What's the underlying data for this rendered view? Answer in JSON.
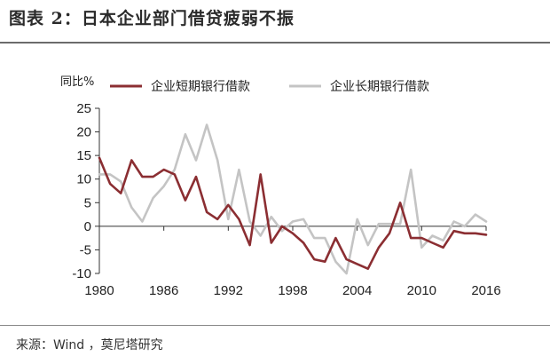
{
  "title": "图表 2：日本企业部门借贷疲弱不振",
  "source": "来源：Wind ，莫尼塔研究",
  "colors": {
    "short_term": "#8b2e32",
    "long_term": "#c4c4c4"
  },
  "chart_data": {
    "type": "line",
    "title": "",
    "xlabel": "",
    "ylabel": "同比%",
    "ylim": [
      -10,
      25
    ],
    "yticks": [
      25,
      20,
      15,
      10,
      5,
      0,
      -5,
      -10
    ],
    "xlim": [
      1980,
      2016
    ],
    "xticks": [
      "1980",
      "1986",
      "1992",
      "1998",
      "2004",
      "2010",
      "2016"
    ],
    "grid": false,
    "legend_position": "top",
    "x": [
      1980,
      1981,
      1982,
      1983,
      1984,
      1985,
      1986,
      1987,
      1988,
      1989,
      1990,
      1991,
      1992,
      1993,
      1994,
      1995,
      1996,
      1997,
      1998,
      1999,
      2000,
      2001,
      2002,
      2003,
      2004,
      2005,
      2006,
      2007,
      2008,
      2009,
      2010,
      2011,
      2012,
      2013,
      2014,
      2015,
      2016
    ],
    "series": [
      {
        "name": "企业短期银行借款",
        "values": [
          14.5,
          9.0,
          7.0,
          14.0,
          10.5,
          10.5,
          12.0,
          11.0,
          5.5,
          10.5,
          3.0,
          1.5,
          4.5,
          1.5,
          -4.0,
          11.0,
          -3.5,
          0.0,
          -1.5,
          -3.5,
          -7.0,
          -7.5,
          -2.5,
          -7.0,
          -8.0,
          -9.0,
          -4.5,
          -1.5,
          5.0,
          -2.5,
          -2.5,
          -3.5,
          -4.5,
          -1.0,
          -1.5,
          -1.5,
          -1.8
        ]
      },
      {
        "name": "企业长期银行借款",
        "values": [
          11.0,
          11.0,
          9.5,
          4.0,
          1.0,
          6.0,
          8.5,
          12.0,
          19.5,
          14.0,
          21.5,
          14.0,
          1.5,
          12.0,
          1.0,
          -2.0,
          2.0,
          -1.0,
          1.0,
          1.5,
          -2.5,
          -2.5,
          -7.5,
          -10.0,
          1.5,
          -4.0,
          0.5,
          0.5,
          0.5,
          12.0,
          -4.5,
          -2.0,
          -3.0,
          1.0,
          0.0,
          2.5,
          1.0
        ]
      }
    ]
  }
}
